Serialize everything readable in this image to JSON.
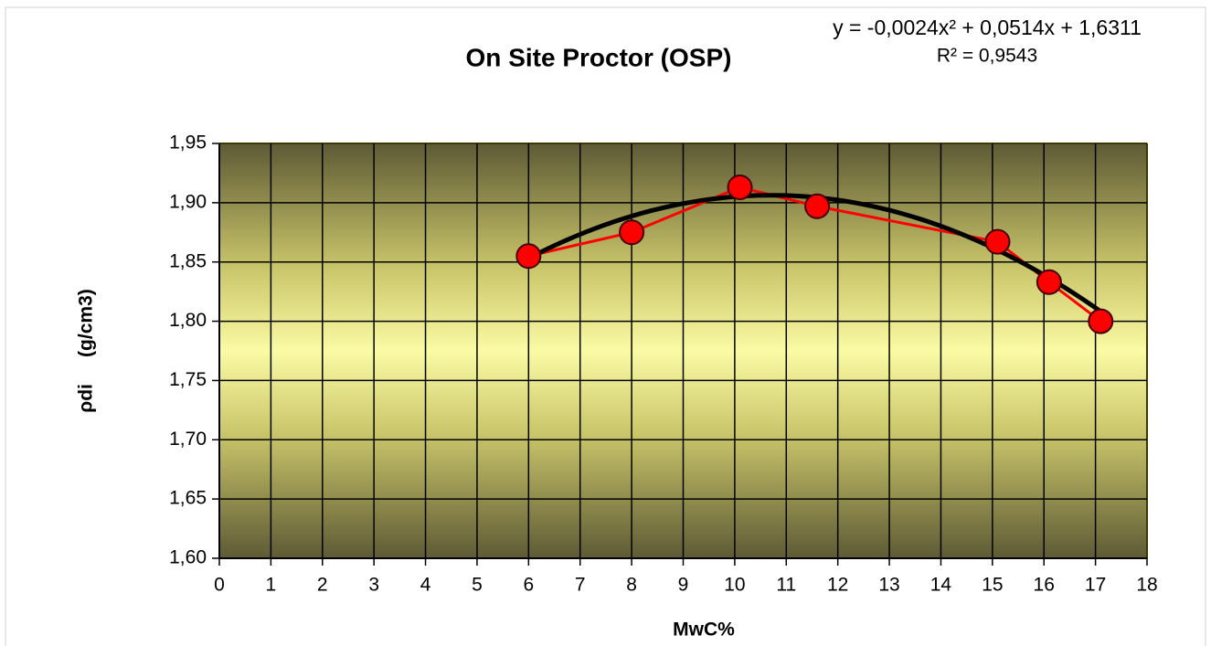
{
  "chart_data": {
    "type": "scatter",
    "title": "On Site Proctor (OSP)",
    "xlabel": "MwC%",
    "ylabel": "ρdi     (g/cm3)",
    "xlim": [
      0,
      18
    ],
    "xticks": [
      0,
      1,
      2,
      3,
      4,
      5,
      6,
      7,
      8,
      9,
      10,
      11,
      12,
      13,
      14,
      15,
      16,
      17,
      18
    ],
    "ylim": [
      1.6,
      1.95
    ],
    "yticks": [
      {
        "value": 1.6,
        "label": "1,60"
      },
      {
        "value": 1.65,
        "label": "1,65"
      },
      {
        "value": 1.7,
        "label": "1,70"
      },
      {
        "value": 1.75,
        "label": "1,75"
      },
      {
        "value": 1.8,
        "label": "1,80"
      },
      {
        "value": 1.85,
        "label": "1,85"
      },
      {
        "value": 1.9,
        "label": "1,90"
      },
      {
        "value": 1.95,
        "label": "1,95"
      }
    ],
    "grid": true,
    "series": [
      {
        "color": "#ff0000",
        "x": [
          6,
          8,
          10.1,
          11.6,
          15.1,
          16.1,
          17.1
        ],
        "values": [
          1.855,
          1.875,
          1.913,
          1.897,
          1.867,
          1.833,
          1.8
        ]
      }
    ],
    "trendline": {
      "type": "polynomial",
      "color": "#000000",
      "coefficients": [
        -0.0024,
        0.0514,
        1.6311
      ],
      "equation": "y = -0,0024x² + 0,0514x + 1,6311",
      "r_squared": 0.9543,
      "r_squared_label": "R² = 0,9543"
    }
  }
}
